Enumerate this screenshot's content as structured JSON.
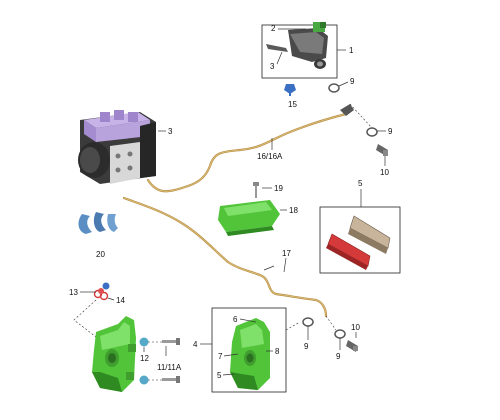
{
  "callouts": {
    "c1": "1",
    "c2": "2",
    "c3a": "3",
    "c3b": "3",
    "c9a": "9",
    "c9b": "9",
    "c9c": "9",
    "c9d": "9",
    "c10a": "10",
    "c10b": "10",
    "c15": "15",
    "c16": "16/16A",
    "c19": "19",
    "c18": "18",
    "c5a": "5",
    "c5b": "5",
    "c20": "20",
    "c17": "17",
    "c13": "13",
    "c14": "14",
    "c4": "4",
    "c6": "6",
    "c7": "7",
    "c8": "8",
    "c12": "12",
    "c11": "11/11A"
  },
  "colors": {
    "green_part": "#52c43a",
    "green_dark": "#2f8a22",
    "brake_line": "#b89048",
    "abs_purple": "#b9a3dd",
    "abs_dark": "#3a3a3a",
    "blue_part": "#5b8fc4",
    "red_part": "#d53a3a",
    "pad_tan": "#c8b49a"
  }
}
